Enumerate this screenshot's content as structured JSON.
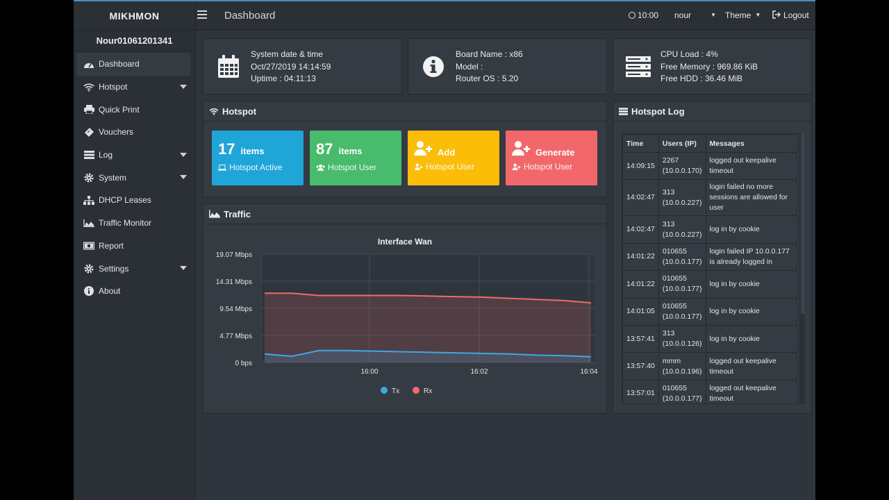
{
  "app": {
    "brand": "MIKHMON",
    "page_title": "Dashboard",
    "clock": "10:00",
    "user": "nour",
    "theme_label": "Theme",
    "logout_label": "Logout"
  },
  "sidebar": {
    "identity": "Nour01061201341",
    "items": [
      {
        "label": "Dashboard",
        "icon": "dashboard-icon",
        "active": true
      },
      {
        "label": "Hotspot",
        "icon": "wifi-icon",
        "caret": true
      },
      {
        "label": "Quick Print",
        "icon": "printer-icon"
      },
      {
        "label": "Vouchers",
        "icon": "ticket-icon"
      },
      {
        "label": "Log",
        "icon": "list-icon",
        "caret": true
      },
      {
        "label": "System",
        "icon": "gear-icon",
        "caret": true
      },
      {
        "label": "DHCP Leases",
        "icon": "sitemap-icon"
      },
      {
        "label": "Traffic Monitor",
        "icon": "area-chart-icon"
      },
      {
        "label": "Report",
        "icon": "money-icon"
      },
      {
        "label": "Settings",
        "icon": "gear-icon",
        "caret": true
      },
      {
        "label": "About",
        "icon": "info-circle-icon"
      }
    ]
  },
  "info": {
    "system": {
      "line1": "System date & time",
      "line2": "Oct/27/2019 14:14:59",
      "line3": "Uptime : 04:11:13"
    },
    "board": {
      "line1": "Board Name : x86",
      "line2": "Model :",
      "line3": "Router OS : 5.20"
    },
    "resources": {
      "line1": "CPU Load : 4%",
      "line2": "Free Memory : 969.86 KiB",
      "line3": "Free HDD : 36.46 MiB"
    }
  },
  "hotspot": {
    "title": "Hotspot",
    "tiles": [
      {
        "count": "17",
        "word": "items",
        "sub": "Hotspot Active",
        "color": "#1fa5d8"
      },
      {
        "count": "87",
        "word": "items",
        "sub": "Hotspot User",
        "color": "#48bb6d"
      },
      {
        "count": "",
        "word": "Add",
        "sub": "Hotspot User",
        "color": "#fbbd08"
      },
      {
        "count": "",
        "word": "Generate",
        "sub": "Hotspot User",
        "color": "#f2686a"
      }
    ]
  },
  "traffic": {
    "title": "Traffic"
  },
  "chart_data": {
    "type": "area",
    "title": "Interface Wan",
    "y_ticks": [
      "19.07 Mbps",
      "14.31 Mbps",
      "9.54 Mbps",
      "4.77 Mbps",
      "0 bps"
    ],
    "x_ticks": [
      "16:00",
      "16:02",
      "16:04"
    ],
    "ylim": [
      0,
      19.07
    ],
    "y_unit": "Mbps",
    "grid": true,
    "legend_position": "bottom",
    "series": [
      {
        "name": "Tx",
        "color": "#3fa9e0",
        "values": [
          1.5,
          1.1,
          2.1,
          2.1,
          2.0,
          1.9,
          1.8,
          1.7,
          1.6,
          1.5,
          1.3,
          1.2,
          1.0
        ]
      },
      {
        "name": "Rx",
        "color": "#f06b6b",
        "values": [
          12.2,
          12.2,
          11.8,
          11.8,
          11.8,
          11.8,
          11.7,
          11.6,
          11.5,
          11.3,
          11.1,
          10.9,
          10.5
        ]
      }
    ]
  },
  "log": {
    "title": "Hotspot Log",
    "columns": [
      "Time",
      "Users (IP)",
      "Messages"
    ],
    "rows": [
      {
        "time": "14:09:15",
        "user": "2267",
        "ip": "(10.0.0.170)",
        "msg": "logged out keepalive timeout"
      },
      {
        "time": "14:02:47",
        "user": "313",
        "ip": "(10.0.0.227)",
        "msg": "login failed no more sessions are allowed for user"
      },
      {
        "time": "14:02:47",
        "user": "313",
        "ip": "(10.0.0.227)",
        "msg": "log in by cookie"
      },
      {
        "time": "14:01:22",
        "user": "010655",
        "ip": "(10.0.0.177)",
        "msg": "login failed IP 10.0.0.177 is already logged in"
      },
      {
        "time": "14:01:22",
        "user": "010655",
        "ip": "(10.0.0.177)",
        "msg": "log in by cookie"
      },
      {
        "time": "14:01:05",
        "user": "010655",
        "ip": "(10.0.0.177)",
        "msg": "log in by cookie"
      },
      {
        "time": "13:57:41",
        "user": "313",
        "ip": "(10.0.0.126)",
        "msg": "log in by cookie"
      },
      {
        "time": "13:57:40",
        "user": "mmm",
        "ip": "(10.0.0.196)",
        "msg": "logged out keepalive timeout"
      },
      {
        "time": "13:57:01",
        "user": "010655",
        "ip": "(10.0.0.177)",
        "msg": "logged out keepalive timeout"
      }
    ]
  }
}
